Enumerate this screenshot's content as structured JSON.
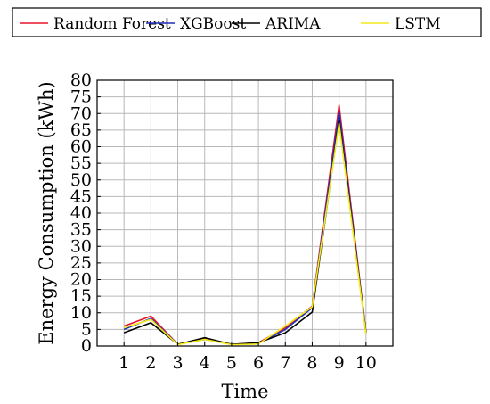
{
  "chart_data": {
    "type": "line",
    "xlabel": "Time",
    "ylabel": "Energy Consumption (kWh)",
    "x": [
      1,
      2,
      3,
      4,
      5,
      6,
      7,
      8,
      9,
      10
    ],
    "xlim": [
      0,
      11
    ],
    "ylim": [
      0,
      80
    ],
    "yticks": [
      0,
      5,
      10,
      15,
      20,
      25,
      30,
      35,
      40,
      45,
      50,
      55,
      60,
      65,
      70,
      75,
      80
    ],
    "grid": true,
    "legend_position": "top",
    "series": [
      {
        "name": "Random Forest",
        "color": "#e8132b",
        "values": [
          6,
          9,
          0.5,
          2.2,
          0.5,
          1,
          5.5,
          12,
          72.5,
          4
        ]
      },
      {
        "name": "XGBoost",
        "color": "#1f2fb8",
        "values": [
          5,
          8.3,
          0.5,
          2,
          0.5,
          0.8,
          5,
          11.5,
          70.5,
          3.8
        ]
      },
      {
        "name": "ARIMA",
        "color": "#000000",
        "values": [
          4,
          7,
          0.5,
          2.5,
          0.5,
          1,
          4,
          10.2,
          68,
          4
        ]
      },
      {
        "name": "LSTM",
        "color": "#f2ea1a",
        "values": [
          5.5,
          8,
          0.4,
          2,
          0.4,
          0.6,
          6,
          11.8,
          67,
          3.5
        ]
      }
    ]
  }
}
